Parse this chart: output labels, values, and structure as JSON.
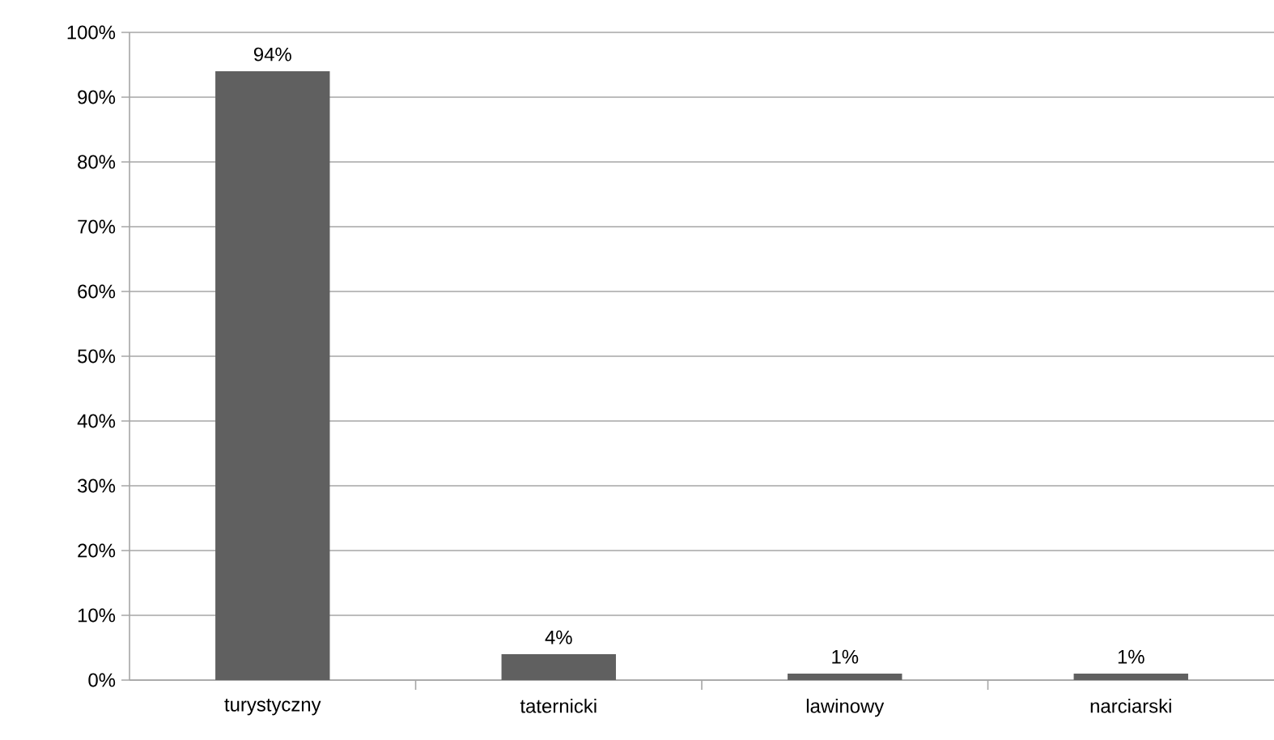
{
  "chart_data": {
    "type": "bar",
    "categories": [
      "turystyczny",
      "taternicki",
      "lawinowy",
      "narciarski"
    ],
    "values": [
      94,
      4,
      1,
      1
    ],
    "value_labels": [
      "94%",
      "4%",
      "1%",
      "1%"
    ],
    "color": "#606060",
    "ylim": [
      0,
      100
    ],
    "yticks": [
      {
        "value": 0,
        "label": "0%"
      },
      {
        "value": 10,
        "label": "10%"
      },
      {
        "value": 20,
        "label": "20%"
      },
      {
        "value": 30,
        "label": "30%"
      },
      {
        "value": 40,
        "label": "40%"
      },
      {
        "value": 50,
        "label": "50%"
      },
      {
        "value": 60,
        "label": "60%"
      },
      {
        "value": 70,
        "label": "70%"
      },
      {
        "value": 80,
        "label": "80%"
      },
      {
        "value": 90,
        "label": "90%"
      },
      {
        "value": 100,
        "label": "100%"
      }
    ],
    "grid": "y"
  }
}
